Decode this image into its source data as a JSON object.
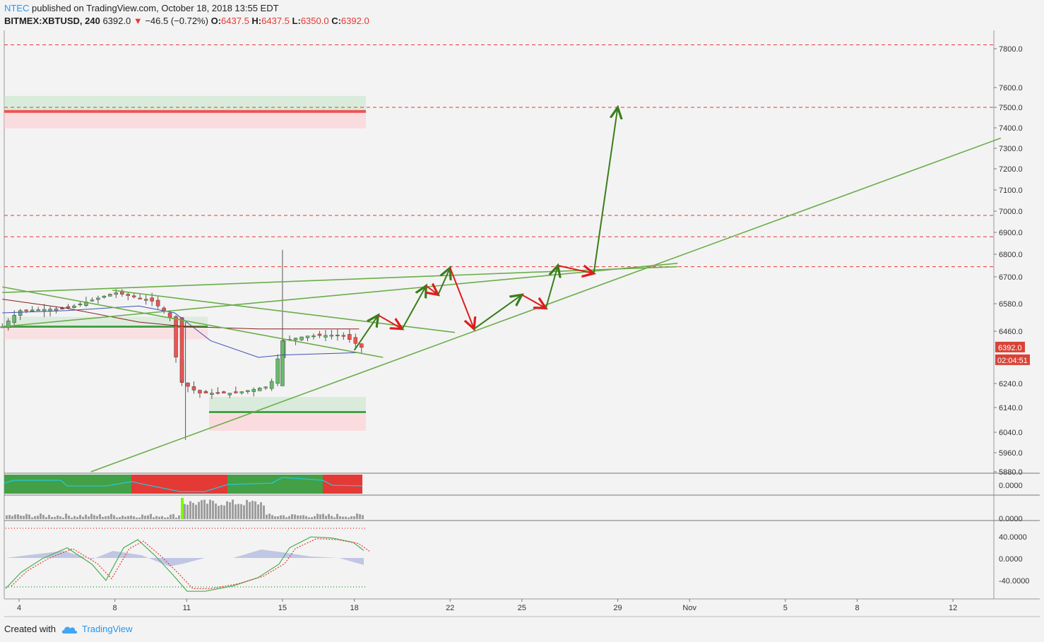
{
  "header": {
    "author": "NTEC",
    "published_text": "published on TradingView.com, October 18, 2018 13:55 EDT",
    "symbol": "BITMEX:XBTUSD, 240",
    "last": "6392.0",
    "change": "−46.5 (−0.72%)",
    "open_label": "O:",
    "open": "6437.5",
    "high_label": "H:",
    "high": "6437.5",
    "low_label": "L:",
    "low": "6350.0",
    "close_label": "C:",
    "close": "6392.0"
  },
  "footer": {
    "created_with": "Created with",
    "brand": "TradingView"
  },
  "colors": {
    "bull": "#4caf50",
    "bear": "#e53935",
    "trend": "#6aad48",
    "arrow_up": "#3a7d1c",
    "arrow_down": "#e01b1b",
    "level": "#e53935",
    "ma": "#3f51b5"
  },
  "chart_data": {
    "type": "candlestick",
    "title": "BITMEX:XBTUSD, 240",
    "y_scale": "log",
    "price_axis_ticks": [
      "7800.0",
      "7600.0",
      "7500.0",
      "7400.0",
      "7300.0",
      "7200.0",
      "7100.0",
      "7000.0",
      "6900.0",
      "6800.0",
      "6700.0",
      "6580.0",
      "6460.0",
      "6240.0",
      "6140.0",
      "6040.0",
      "5960.0",
      "5880.0"
    ],
    "time_axis_ticks": [
      "4",
      "8",
      "11",
      "15",
      "18",
      "22",
      "25",
      "29",
      "Nov",
      "5",
      "8",
      "12"
    ],
    "last_price_label": "6392.0",
    "countdown_label": "02:04:51",
    "resistance_levels": [
      7820,
      7500,
      6980,
      6880,
      6745
    ],
    "supply_zone": {
      "price": 7480
    },
    "demand_zone": {
      "price": 6120
    },
    "candles_approx": [
      {
        "date": "Oct 3",
        "o": 6480,
        "h": 6520,
        "l": 6440,
        "c": 6500
      },
      {
        "date": "Oct 4",
        "o": 6540,
        "h": 6575,
        "l": 6510,
        "c": 6555
      },
      {
        "date": "Oct 6",
        "o": 6560,
        "h": 6600,
        "l": 6530,
        "c": 6575
      },
      {
        "date": "Oct 8",
        "o": 6570,
        "h": 6680,
        "l": 6550,
        "c": 6640
      },
      {
        "date": "Oct 10",
        "o": 6530,
        "h": 6560,
        "l": 6480,
        "c": 6530
      },
      {
        "date": "Oct 11",
        "o": 6520,
        "h": 6540,
        "l": 6040,
        "c": 6250
      },
      {
        "date": "Oct 13",
        "o": 6200,
        "h": 6230,
        "l": 6160,
        "c": 6200
      },
      {
        "date": "Oct 14",
        "o": 6220,
        "h": 6320,
        "l": 6140,
        "c": 6230
      },
      {
        "date": "Oct 15",
        "o": 6230,
        "h": 6820,
        "l": 6220,
        "c": 6420
      },
      {
        "date": "Oct 17",
        "o": 6440,
        "h": 6490,
        "l": 6400,
        "c": 6445
      },
      {
        "date": "Oct 18",
        "o": 6437.5,
        "h": 6437.5,
        "l": 6350,
        "c": 6392
      }
    ],
    "projection_path": [
      {
        "date": "Oct 18",
        "price": 6380
      },
      {
        "date": "Oct 19",
        "price": 6530
      },
      {
        "date": "Oct 20",
        "price": 6470
      },
      {
        "date": "Oct 21",
        "price": 6660
      },
      {
        "date": "Oct 21.5",
        "price": 6620
      },
      {
        "date": "Oct 22",
        "price": 6740
      },
      {
        "date": "Oct 23",
        "price": 6470
      },
      {
        "date": "Oct 25",
        "price": 6620
      },
      {
        "date": "Oct 26",
        "price": 6560
      },
      {
        "date": "Oct 26.5",
        "price": 6750
      },
      {
        "date": "Oct 28",
        "price": 6715
      },
      {
        "date": "Oct 29",
        "price": 7500
      }
    ],
    "indicators": [
      {
        "name": "trend_strip",
        "axis_tick": "0.0000"
      },
      {
        "name": "volume_histogram",
        "axis_tick": "0.0000"
      },
      {
        "name": "oscillator",
        "axis_ticks": [
          "40.0000",
          "0.0000",
          "-40.0000"
        ]
      }
    ]
  }
}
